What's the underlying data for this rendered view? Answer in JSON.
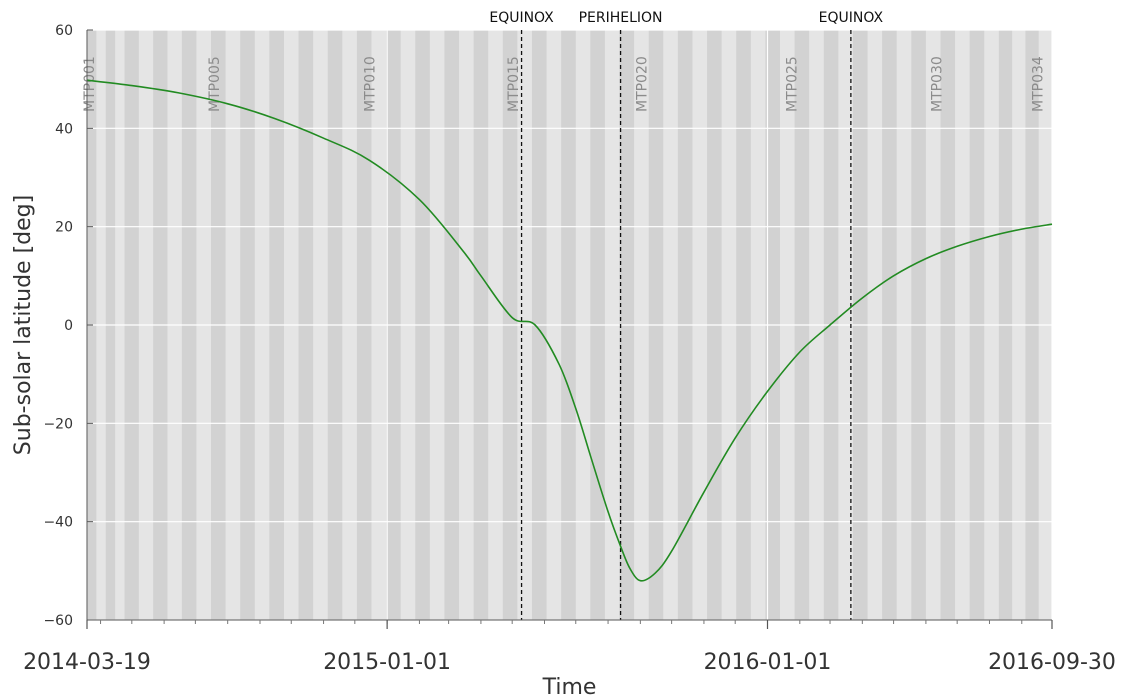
{
  "chart_data": {
    "type": "line",
    "title": "",
    "xlabel": "Time",
    "ylabel": "Sub-solar latitude [deg]",
    "xlim": [
      "2014-03-19",
      "2016-09-30"
    ],
    "ylim": [
      -60,
      60
    ],
    "y_ticks": [
      60,
      40,
      20,
      0,
      -20,
      -40,
      -60
    ],
    "y_tick_labels": [
      "60",
      "40",
      "20",
      "0",
      "−20",
      "−40",
      "−60"
    ],
    "x_ticks": [
      {
        "date": "2014-03-19",
        "label": "2014-03-19"
      },
      {
        "date": "2015-01-01",
        "label": "2015-01-01"
      },
      {
        "date": "2016-01-01",
        "label": "2016-01-01"
      },
      {
        "date": "2016-09-30",
        "label": "2016-09-30"
      }
    ],
    "grid": true,
    "line_color": "#228b22",
    "series": [
      {
        "name": "",
        "x": [
          "2014-03-19",
          "2014-05-01",
          "2014-06-15",
          "2014-08-01",
          "2014-09-15",
          "2014-11-01",
          "2014-12-15",
          "2015-02-01",
          "2015-03-15",
          "2015-04-01",
          "2015-05-01",
          "2015-05-23",
          "2015-06-15",
          "2015-07-01",
          "2015-07-15",
          "2015-08-01",
          "2015-08-13",
          "2015-08-22",
          "2015-09-01",
          "2015-09-15",
          "2015-10-01",
          "2015-11-01",
          "2015-12-01",
          "2016-01-01",
          "2016-02-01",
          "2016-03-01",
          "2016-04-01",
          "2016-05-01",
          "2016-06-01",
          "2016-07-01",
          "2016-08-01",
          "2016-09-01",
          "2016-09-30"
        ],
        "y": [
          49.8,
          48.7,
          47.2,
          45.0,
          42.0,
          38.0,
          33.5,
          25.5,
          15.0,
          10.0,
          1.5,
          0.0,
          -8.0,
          -17.0,
          -26.5,
          -38.0,
          -45.0,
          -49.5,
          -52.0,
          -50.5,
          -46.0,
          -34.0,
          -23.0,
          -13.5,
          -5.5,
          0.0,
          5.5,
          10.0,
          13.5,
          16.0,
          18.0,
          19.5,
          20.5
        ]
      }
    ],
    "vertical_markers": [
      {
        "date": "2015-05-10",
        "label": "EQUINOX"
      },
      {
        "date": "2015-08-13",
        "label": "PERIHELION"
      },
      {
        "date": "2016-03-21",
        "label": "EQUINOX"
      }
    ],
    "mtp_periods": [
      "2014-03-19",
      "2014-04-24",
      "2014-06-18",
      "2014-08-13",
      "2014-10-08",
      "2014-12-03",
      "2015-01-28",
      "2015-03-25",
      "2015-05-20",
      "2015-07-15",
      "2015-09-09",
      "2015-11-04",
      "2015-12-30",
      "2016-02-24",
      "2016-04-20",
      "2016-06-15",
      "2016-08-10",
      "2016-09-30"
    ],
    "mtp_labels": [
      {
        "date": "2014-03-21",
        "label": "MTP001"
      },
      {
        "date": "2014-07-19",
        "label": "MTP005"
      },
      {
        "date": "2014-12-15",
        "label": "MTP010"
      },
      {
        "date": "2015-05-02",
        "label": "MTP015"
      },
      {
        "date": "2015-09-02",
        "label": "MTP020"
      },
      {
        "date": "2016-01-24",
        "label": "MTP025"
      },
      {
        "date": "2016-06-11",
        "label": "MTP030"
      },
      {
        "date": "2016-09-16",
        "label": "MTP034"
      }
    ]
  }
}
